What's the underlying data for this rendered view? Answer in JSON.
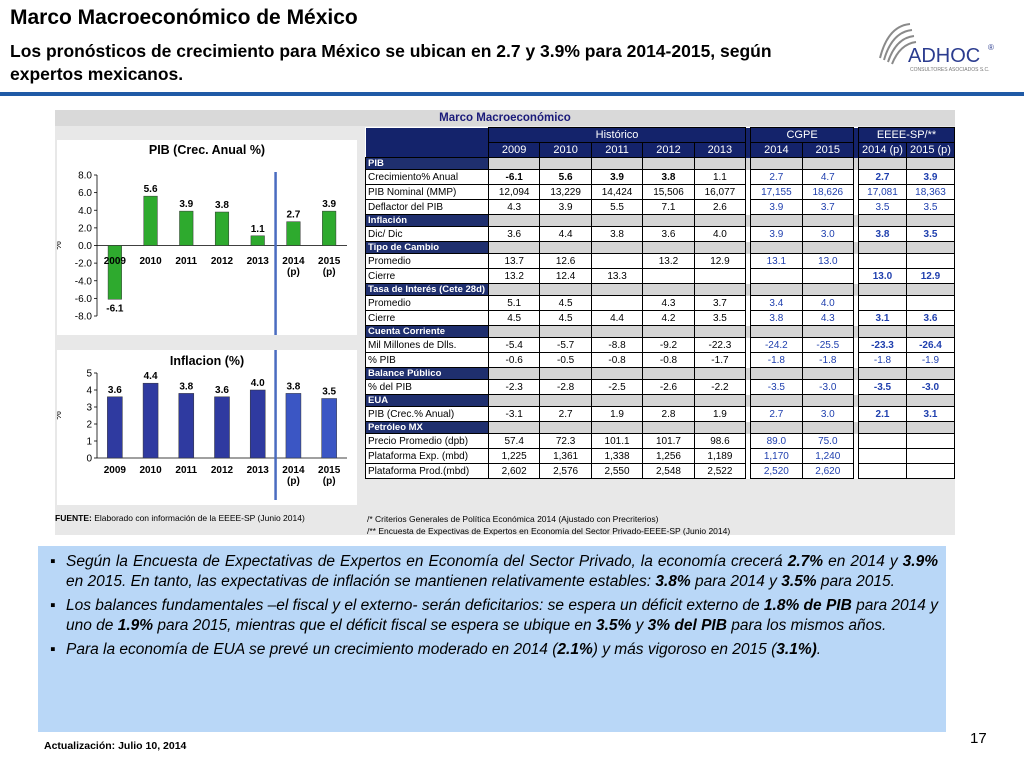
{
  "header": {
    "title": "Marco Macroeconómico de México",
    "subtitle": "Los pronósticos de crecimiento para México se ubican en 2.7 y 3.9% para 2014-2015, según expertos mexicanos.",
    "logo_text": "ADHOC",
    "logo_tagline": "CONSULTORES ASOCIADOS S.C."
  },
  "panel_title": "Marco Macroeconómico",
  "chart_data": [
    {
      "type": "bar",
      "title": "PIB (Crec. Anual %)",
      "ylabel": "%",
      "categories": [
        "2009",
        "2010",
        "2011",
        "2012",
        "2013",
        "2014\n(p)",
        "2015\n(p)"
      ],
      "values": [
        -6.1,
        5.6,
        3.9,
        3.8,
        1.1,
        2.7,
        3.9
      ],
      "labels": [
        "-6.1",
        "5.6",
        "3.9",
        "3.8",
        "1.1",
        "2.7",
        "3.9"
      ],
      "ylim": [
        -8.0,
        8.0
      ],
      "yticks": [
        "8.0",
        "6.0",
        "4.0",
        "2.0",
        "0.0",
        "-2.0",
        "-4.0",
        "-6.0",
        "-8.0"
      ],
      "colors": [
        "#2eaa2e",
        "#2eaa2e",
        "#2eaa2e",
        "#2eaa2e",
        "#2eaa2e",
        "#2eaa2e",
        "#2eaa2e"
      ]
    },
    {
      "type": "bar",
      "title": "Inflacion (%)",
      "ylabel": "%",
      "categories": [
        "2009",
        "2010",
        "2011",
        "2012",
        "2013",
        "2014\n(p)",
        "2015\n(p)"
      ],
      "values": [
        3.6,
        4.4,
        3.8,
        3.6,
        4.0,
        3.8,
        3.5
      ],
      "labels": [
        "3.6",
        "4.4",
        "3.8",
        "3.6",
        "4.0",
        "3.8",
        "3.5"
      ],
      "ylim": [
        0,
        5
      ],
      "yticks": [
        "5",
        "4",
        "3",
        "2",
        "1",
        "0"
      ],
      "colors": [
        "#2f3aa0",
        "#2f3aa0",
        "#2f3aa0",
        "#2f3aa0",
        "#2f3aa0",
        "#3b56c4",
        "#3b56c4"
      ]
    }
  ],
  "table": {
    "groups": [
      "Histórico",
      "CGPE",
      "EEEE-SP/**"
    ],
    "years": [
      "2009",
      "2010",
      "2011",
      "2012",
      "2013",
      "2014",
      "2015",
      "2014 (p)",
      "2015 (p)"
    ],
    "rows": [
      {
        "section": "PIB"
      },
      {
        "label": "Crecimiento%  Anual",
        "h": [
          "-6.1",
          "5.6",
          "3.9",
          "3.8",
          "1.1"
        ],
        "c": [
          "2.7",
          "4.7"
        ],
        "e": [
          "2.7",
          "3.9"
        ],
        "hbold": [
          true,
          true,
          true,
          true,
          false
        ]
      },
      {
        "label": "PIB Nominal (MMP)",
        "h": [
          "12,094",
          "13,229",
          "14,424",
          "15,506",
          "16,077"
        ],
        "c": [
          "17,155",
          "18,626"
        ],
        "e": [
          "17,081",
          "18,363"
        ],
        "eplain": true
      },
      {
        "label": "Deflactor del PIB",
        "h": [
          "4.3",
          "3.9",
          "5.5",
          "7.1",
          "2.6"
        ],
        "c": [
          "3.9",
          "3.7"
        ],
        "e": [
          "3.5",
          "3.5"
        ],
        "eplain": true
      },
      {
        "section": "Inflación"
      },
      {
        "label": "Dic/ Dic",
        "h": [
          "3.6",
          "4.4",
          "3.8",
          "3.6",
          "4.0"
        ],
        "c": [
          "3.9",
          "3.0"
        ],
        "e": [
          "3.8",
          "3.5"
        ]
      },
      {
        "section": "Tipo de Cambio"
      },
      {
        "label": "Promedio",
        "h": [
          "13.7",
          "12.6",
          "",
          "13.2",
          "12.9"
        ],
        "c": [
          "13.1",
          "13.0"
        ],
        "e": [
          "",
          ""
        ]
      },
      {
        "label": "Cierre",
        "h": [
          "13.2",
          "12.4",
          "13.3",
          "",
          ""
        ],
        "c": [
          "",
          ""
        ],
        "e": [
          "13.0",
          "12.9"
        ]
      },
      {
        "section": "Tasa de Interés (Cete 28d)"
      },
      {
        "label": "Promedio",
        "h": [
          "5.1",
          "4.5",
          "",
          "4.3",
          "3.7"
        ],
        "c": [
          "3.4",
          "4.0"
        ],
        "e": [
          "",
          ""
        ]
      },
      {
        "label": "Cierre",
        "h": [
          "4.5",
          "4.5",
          "4.4",
          "4.2",
          "3.5"
        ],
        "c": [
          "3.8",
          "4.3"
        ],
        "e": [
          "3.1",
          "3.6"
        ]
      },
      {
        "section": "Cuenta Corriente"
      },
      {
        "label": "Mil Millones de Dlls.",
        "h": [
          "-5.4",
          "-5.7",
          "-8.8",
          "-9.2",
          "-22.3"
        ],
        "c": [
          "-24.2",
          "-25.5"
        ],
        "e": [
          "-23.3",
          "-26.4"
        ]
      },
      {
        "label": "% PIB",
        "h": [
          "-0.6",
          "-0.5",
          "-0.8",
          "-0.8",
          "-1.7"
        ],
        "c": [
          "-1.8",
          "-1.8"
        ],
        "e": [
          "-1.8",
          "-1.9"
        ],
        "eplain": true
      },
      {
        "section": "Balance Público"
      },
      {
        "label": "% del PIB",
        "h": [
          "-2.3",
          "-2.8",
          "-2.5",
          "-2.6",
          "-2.2"
        ],
        "c": [
          "-3.5",
          "-3.0"
        ],
        "e": [
          "-3.5",
          "-3.0"
        ]
      },
      {
        "section": "EUA"
      },
      {
        "label": "PIB (Crec.%  Anual)",
        "h": [
          "-3.1",
          "2.7",
          "1.9",
          "2.8",
          "1.9"
        ],
        "c": [
          "2.7",
          "3.0"
        ],
        "e": [
          "2.1",
          "3.1"
        ]
      },
      {
        "section": "Petróleo MX"
      },
      {
        "label": "Precio Promedio (dpb)",
        "h": [
          "57.4",
          "72.3",
          "101.1",
          "101.7",
          "98.6"
        ],
        "c": [
          "89.0",
          "75.0"
        ],
        "e": [
          "",
          ""
        ]
      },
      {
        "label": "Plataforma Exp. (mbd)",
        "h": [
          "1,225",
          "1,361",
          "1,338",
          "1,256",
          "1,189"
        ],
        "c": [
          "1,170",
          "1,240"
        ],
        "e": [
          "",
          ""
        ]
      },
      {
        "label": "Plataforma Prod.(mbd)",
        "h": [
          "2,602",
          "2,576",
          "2,550",
          "2,548",
          "2,522"
        ],
        "c": [
          "2,520",
          "2,620"
        ],
        "e": [
          "",
          ""
        ]
      }
    ]
  },
  "source": {
    "label": "FUENTE:",
    "text": " Elaborado con información de la EEEE-SP (Junio 2014)"
  },
  "notes": [
    "/*   Criterios Generales de Política Económica  2014 (Ajustado con Precriterios)",
    "/**  Encuesta de Expectivas de Expertos en Economía del Sector Privado-EEEE-SP (Junio 2014)"
  ],
  "bullets": [
    [
      {
        "t": "Según la Encuesta de Expectativas de Expertos en Economía del Sector Privado, la economía crecerá "
      },
      {
        "t": "2.7%",
        "b": true
      },
      {
        "t": " en 2014 y "
      },
      {
        "t": "3.9%",
        "b": true
      },
      {
        "t": " en 2015. En tanto, las expectativas de inflación se mantienen relativamente estables: "
      },
      {
        "t": "3.8%",
        "b": true
      },
      {
        "t": " para 2014 y "
      },
      {
        "t": "3.5%",
        "b": true
      },
      {
        "t": " para 2015."
      }
    ],
    [
      {
        "t": "Los balances fundamentales –el fiscal y el externo- serán deficitarios: se espera un déficit externo de "
      },
      {
        "t": "1.8% de PIB",
        "b": true
      },
      {
        "t": "  para 2014 y uno de "
      },
      {
        "t": "1.9%",
        "b": true
      },
      {
        "t": " para 2015, mientras que el déficit fiscal se espera se ubique en "
      },
      {
        "t": "3.5%",
        "b": true
      },
      {
        "t": " y "
      },
      {
        "t": "3% del PIB",
        "b": true
      },
      {
        "t": "  para los mismos años."
      }
    ],
    [
      {
        "t": "Para la economía de EUA se prevé un crecimiento moderado en 2014 ("
      },
      {
        "t": "2.1%",
        "b": true
      },
      {
        "t": ") y más vigoroso en 2015 ("
      },
      {
        "t": "3.1%)",
        "b": true
      },
      {
        "t": "."
      }
    ]
  ],
  "footer": "Actualización:  Julio 10, 2014",
  "page_number": "17",
  "colors": {
    "rule": "#1f5aa6",
    "table_header": "#14236b",
    "bullets_bg": "#b9d7f7",
    "cgpe_text": "#1f3fae",
    "pib_bars": "#2eaa2e",
    "inflation_bars": "#2f3aa0"
  }
}
